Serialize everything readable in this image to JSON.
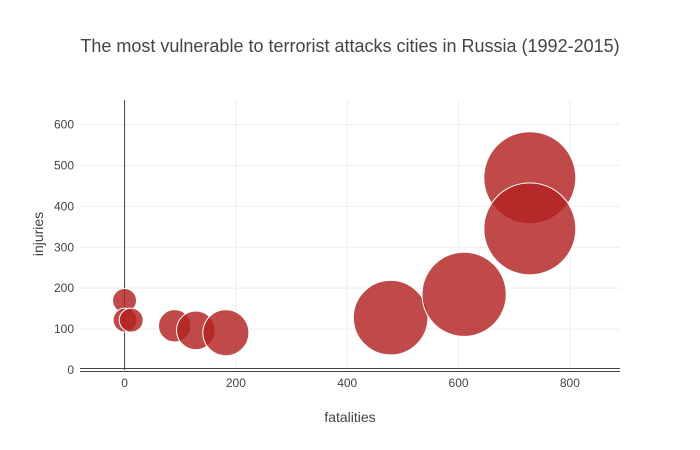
{
  "chart_data": {
    "type": "scatter",
    "title": "The most vulnerable to terrorist attacks cities in Russia (1992-2015)",
    "xlabel": "fatalities",
    "ylabel": "injuries",
    "xlim": [
      -80,
      890
    ],
    "ylim": [
      0,
      660
    ],
    "xticks": [
      0,
      200,
      400,
      600,
      800
    ],
    "yticks": [
      0,
      100,
      200,
      300,
      400,
      500,
      600
    ],
    "grid": true,
    "legend": "none",
    "marker_color": "#b22222",
    "marker_opacity": 0.82,
    "marker_size_encodes": "fatalities",
    "series": [
      {
        "points": [
          {
            "x": 0,
            "y": 170
          },
          {
            "x": 1,
            "y": 122
          },
          {
            "x": 12,
            "y": 122
          },
          {
            "x": 90,
            "y": 108
          },
          {
            "x": 128,
            "y": 97
          },
          {
            "x": 182,
            "y": 91
          },
          {
            "x": 478,
            "y": 128
          },
          {
            "x": 610,
            "y": 185
          },
          {
            "x": 728,
            "y": 470
          },
          {
            "x": 728,
            "y": 345
          }
        ]
      }
    ]
  }
}
